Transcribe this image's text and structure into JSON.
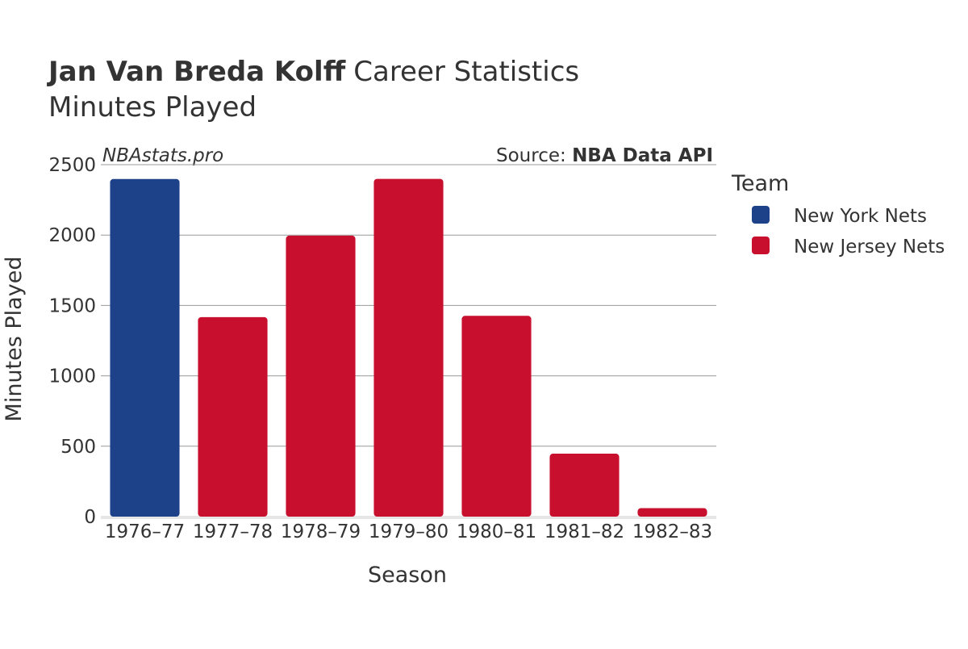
{
  "header": {
    "player_name": "Jan Van Breda Kolff",
    "title_suffix": "Career Statistics",
    "subtitle": "Minutes Played"
  },
  "watermark": "NBAstats.pro",
  "source": {
    "prefix": "Source: ",
    "name": "NBA Data API"
  },
  "legend": {
    "title": "Team",
    "items": [
      {
        "label": "New York Nets",
        "color": "#1d428a"
      },
      {
        "label": "New Jersey Nets",
        "color": "#c8102e"
      }
    ]
  },
  "chart_data": {
    "type": "bar",
    "title": "Jan Van Breda Kolff Career Statistics",
    "subtitle": "Minutes Played",
    "xlabel": "Season",
    "ylabel": "Minutes Played",
    "ylim": [
      0,
      2500
    ],
    "yticks": [
      0,
      500,
      1000,
      1500,
      2000,
      2500
    ],
    "grid": true,
    "legend_position": "right",
    "categories": [
      "1976–77",
      "1977–78",
      "1978–79",
      "1979–80",
      "1980–81",
      "1981–82",
      "1982–83"
    ],
    "values": [
      2398,
      1417,
      1996,
      2399,
      1426,
      447,
      60
    ],
    "teams": [
      "New York Nets",
      "New Jersey Nets",
      "New Jersey Nets",
      "New Jersey Nets",
      "New Jersey Nets",
      "New Jersey Nets",
      "New Jersey Nets"
    ]
  }
}
